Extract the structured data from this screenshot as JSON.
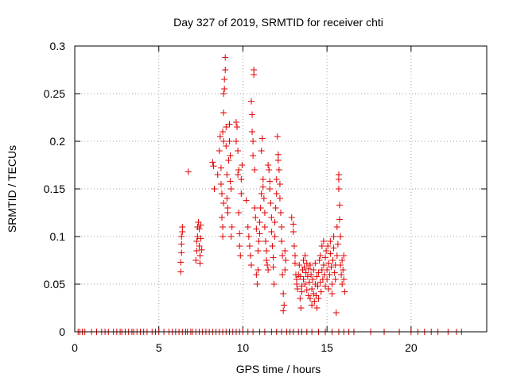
{
  "chart_data": {
    "type": "scatter",
    "title": "Day 327 of 2019, SRMTID for receiver chti",
    "xlabel": "GPS time / hours",
    "ylabel": "SRMTID / TECUs",
    "xlim": [
      0,
      24.5
    ],
    "ylim": [
      0,
      0.3
    ],
    "xticks": [
      0,
      5,
      10,
      15,
      20
    ],
    "yticks": [
      0,
      0.05,
      0.1,
      0.15,
      0.2,
      0.25,
      0.3
    ],
    "xtick_labels": [
      "0",
      "5",
      "10",
      "15",
      "20"
    ],
    "ytick_labels": [
      "0",
      "0.05",
      "0.1",
      "0.15",
      "0.2",
      "0.25",
      "0.3"
    ],
    "grid": true,
    "marker": "+",
    "color": "#e00000",
    "series": [
      {
        "name": "SRMTID",
        "points": [
          [
            0.2,
            0
          ],
          [
            0.3,
            0
          ],
          [
            0.45,
            0
          ],
          [
            0.6,
            0
          ],
          [
            1.0,
            0
          ],
          [
            1.3,
            0
          ],
          [
            1.6,
            0
          ],
          [
            1.8,
            0
          ],
          [
            2.0,
            0
          ],
          [
            2.3,
            0
          ],
          [
            2.5,
            0
          ],
          [
            2.7,
            0
          ],
          [
            2.8,
            0
          ],
          [
            3.0,
            0
          ],
          [
            3.2,
            0
          ],
          [
            3.4,
            0
          ],
          [
            3.5,
            0
          ],
          [
            3.7,
            0
          ],
          [
            3.9,
            0
          ],
          [
            4.1,
            0
          ],
          [
            4.3,
            0
          ],
          [
            4.6,
            0
          ],
          [
            4.8,
            0
          ],
          [
            5.0,
            0
          ],
          [
            5.3,
            0
          ],
          [
            5.6,
            0
          ],
          [
            5.8,
            0
          ],
          [
            6.0,
            0
          ],
          [
            6.2,
            0
          ],
          [
            6.4,
            0
          ],
          [
            6.6,
            0
          ],
          [
            6.7,
            0
          ],
          [
            6.9,
            0
          ],
          [
            7.0,
            0
          ],
          [
            7.2,
            0
          ],
          [
            7.4,
            0
          ],
          [
            7.6,
            0
          ],
          [
            7.8,
            0
          ],
          [
            8.0,
            0
          ],
          [
            8.2,
            0
          ],
          [
            8.4,
            0
          ],
          [
            8.6,
            0
          ],
          [
            8.8,
            0
          ],
          [
            9.0,
            0
          ],
          [
            9.2,
            0
          ],
          [
            9.4,
            0
          ],
          [
            9.6,
            0
          ],
          [
            9.8,
            0
          ],
          [
            10.0,
            0
          ],
          [
            10.3,
            0
          ],
          [
            10.6,
            0
          ],
          [
            11.0,
            0
          ],
          [
            11.3,
            0
          ],
          [
            11.7,
            0
          ],
          [
            12.0,
            0
          ],
          [
            12.3,
            0
          ],
          [
            12.6,
            0
          ],
          [
            12.8,
            0
          ],
          [
            13.0,
            0
          ],
          [
            13.3,
            0
          ],
          [
            13.5,
            0
          ],
          [
            13.8,
            0
          ],
          [
            14.1,
            0
          ],
          [
            14.5,
            0
          ],
          [
            14.9,
            0
          ],
          [
            15.3,
            0
          ],
          [
            15.7,
            0
          ],
          [
            16.0,
            0
          ],
          [
            16.3,
            0
          ],
          [
            16.6,
            0
          ],
          [
            17.6,
            0
          ],
          [
            18.4,
            0
          ],
          [
            19.3,
            0
          ],
          [
            20.0,
            0
          ],
          [
            20.4,
            0
          ],
          [
            20.8,
            0
          ],
          [
            21.2,
            0
          ],
          [
            21.6,
            0
          ],
          [
            22.2,
            0
          ],
          [
            22.7,
            0
          ],
          [
            23.0,
            0
          ],
          [
            6.3,
            0.063
          ],
          [
            6.3,
            0.073
          ],
          [
            6.35,
            0.083
          ],
          [
            6.35,
            0.092
          ],
          [
            6.35,
            0.1
          ],
          [
            6.4,
            0.105
          ],
          [
            6.4,
            0.11
          ],
          [
            6.75,
            0.168
          ],
          [
            7.2,
            0.075
          ],
          [
            7.25,
            0.085
          ],
          [
            7.25,
            0.095
          ],
          [
            7.3,
            0.1
          ],
          [
            7.3,
            0.11
          ],
          [
            7.35,
            0.115
          ],
          [
            7.4,
            0.108
          ],
          [
            7.4,
            0.09
          ],
          [
            7.45,
            0.08
          ],
          [
            7.45,
            0.072
          ],
          [
            7.5,
            0.098
          ],
          [
            7.5,
            0.112
          ],
          [
            7.55,
            0.086
          ],
          [
            8.2,
            0.178
          ],
          [
            8.25,
            0.174
          ],
          [
            8.3,
            0.15
          ],
          [
            8.5,
            0.165
          ],
          [
            8.6,
            0.19
          ],
          [
            8.65,
            0.205
          ],
          [
            8.7,
            0.172
          ],
          [
            8.7,
            0.155
          ],
          [
            8.75,
            0.145
          ],
          [
            8.75,
            0.12
          ],
          [
            8.8,
            0.11
          ],
          [
            8.8,
            0.1
          ],
          [
            8.85,
            0.135
          ],
          [
            8.85,
            0.2
          ],
          [
            8.8,
            0.21
          ],
          [
            8.85,
            0.23
          ],
          [
            8.85,
            0.25
          ],
          [
            8.9,
            0.255
          ],
          [
            8.9,
            0.265
          ],
          [
            8.95,
            0.275
          ],
          [
            8.95,
            0.288
          ],
          [
            9.0,
            0.195
          ],
          [
            9.0,
            0.215
          ],
          [
            9.05,
            0.165
          ],
          [
            9.05,
            0.14
          ],
          [
            9.1,
            0.125
          ],
          [
            9.1,
            0.13
          ],
          [
            9.15,
            0.18
          ],
          [
            9.2,
            0.2
          ],
          [
            9.2,
            0.218
          ],
          [
            9.25,
            0.185
          ],
          [
            9.25,
            0.158
          ],
          [
            9.3,
            0.15
          ],
          [
            9.3,
            0.1
          ],
          [
            9.35,
            0.11
          ],
          [
            9.6,
            0.22
          ],
          [
            9.6,
            0.2
          ],
          [
            9.65,
            0.215
          ],
          [
            9.7,
            0.19
          ],
          [
            9.7,
            0.165
          ],
          [
            9.75,
            0.17
          ],
          [
            9.75,
            0.125
          ],
          [
            9.8,
            0.103
          ],
          [
            9.8,
            0.09
          ],
          [
            9.85,
            0.08
          ],
          [
            9.9,
            0.145
          ],
          [
            9.9,
            0.16
          ],
          [
            9.95,
            0.175
          ],
          [
            10.2,
            0.138
          ],
          [
            10.3,
            0.11
          ],
          [
            10.35,
            0.1
          ],
          [
            10.4,
            0.09
          ],
          [
            10.45,
            0.08
          ],
          [
            10.5,
            0.07
          ],
          [
            10.5,
            0.242
          ],
          [
            10.55,
            0.228
          ],
          [
            10.55,
            0.21
          ],
          [
            10.6,
            0.2
          ],
          [
            10.6,
            0.185
          ],
          [
            10.65,
            0.275
          ],
          [
            10.65,
            0.27
          ],
          [
            10.7,
            0.17
          ],
          [
            10.7,
            0.13
          ],
          [
            10.75,
            0.12
          ],
          [
            10.8,
            0.108
          ],
          [
            10.8,
            0.06
          ],
          [
            10.85,
            0.05
          ],
          [
            10.9,
            0.065
          ],
          [
            10.9,
            0.085
          ],
          [
            10.95,
            0.095
          ],
          [
            11.0,
            0.103
          ],
          [
            11.0,
            0.115
          ],
          [
            11.05,
            0.13
          ],
          [
            11.1,
            0.145
          ],
          [
            11.1,
            0.19
          ],
          [
            11.15,
            0.203
          ],
          [
            11.2,
            0.152
          ],
          [
            11.2,
            0.16
          ],
          [
            11.25,
            0.14
          ],
          [
            11.3,
            0.125
          ],
          [
            11.3,
            0.11
          ],
          [
            11.35,
            0.095
          ],
          [
            11.4,
            0.085
          ],
          [
            11.4,
            0.075
          ],
          [
            11.45,
            0.07
          ],
          [
            11.5,
            0.065
          ],
          [
            11.5,
            0.175
          ],
          [
            11.55,
            0.17
          ],
          [
            11.6,
            0.158
          ],
          [
            11.6,
            0.15
          ],
          [
            11.65,
            0.135
          ],
          [
            11.7,
            0.12
          ],
          [
            11.7,
            0.105
          ],
          [
            11.75,
            0.09
          ],
          [
            11.8,
            0.078
          ],
          [
            11.8,
            0.068
          ],
          [
            11.85,
            0.05
          ],
          [
            11.9,
            0.1
          ],
          [
            11.9,
            0.115
          ],
          [
            11.95,
            0.13
          ],
          [
            12.0,
            0.145
          ],
          [
            12.0,
            0.16
          ],
          [
            12.05,
            0.205
          ],
          [
            12.1,
            0.186
          ],
          [
            12.1,
            0.18
          ],
          [
            12.15,
            0.17
          ],
          [
            12.2,
            0.155
          ],
          [
            12.2,
            0.14
          ],
          [
            12.25,
            0.125
          ],
          [
            12.3,
            0.11
          ],
          [
            12.3,
            0.095
          ],
          [
            12.35,
            0.08
          ],
          [
            12.35,
            0.06
          ],
          [
            12.4,
            0.04
          ],
          [
            12.4,
            0.022
          ],
          [
            12.45,
            0.028
          ],
          [
            12.5,
            0.065
          ],
          [
            12.5,
            0.085
          ],
          [
            12.55,
            0.075
          ],
          [
            12.9,
            0.12
          ],
          [
            13.0,
            0.113
          ],
          [
            13.0,
            0.105
          ],
          [
            13.05,
            0.09
          ],
          [
            13.1,
            0.08
          ],
          [
            13.1,
            0.072
          ],
          [
            13.15,
            0.06
          ],
          [
            13.2,
            0.055
          ],
          [
            13.2,
            0.05
          ],
          [
            13.25,
            0.045
          ],
          [
            13.3,
            0.06
          ],
          [
            13.35,
            0.07
          ],
          [
            13.4,
            0.058
          ],
          [
            13.4,
            0.035
          ],
          [
            13.45,
            0.025
          ],
          [
            13.5,
            0.042
          ],
          [
            13.5,
            0.048
          ],
          [
            13.55,
            0.065
          ],
          [
            13.6,
            0.075
          ],
          [
            13.6,
            0.055
          ],
          [
            13.65,
            0.068
          ],
          [
            13.7,
            0.05
          ],
          [
            13.7,
            0.08
          ],
          [
            13.75,
            0.062
          ],
          [
            13.8,
            0.072
          ],
          [
            13.8,
            0.044
          ],
          [
            13.85,
            0.058
          ],
          [
            13.9,
            0.038
          ],
          [
            13.9,
            0.066
          ],
          [
            13.95,
            0.052
          ],
          [
            14.0,
            0.07
          ],
          [
            14.0,
            0.035
          ],
          [
            14.05,
            0.06
          ],
          [
            14.1,
            0.045
          ],
          [
            14.1,
            0.028
          ],
          [
            14.15,
            0.055
          ],
          [
            14.2,
            0.04
          ],
          [
            14.2,
            0.065
          ],
          [
            14.25,
            0.032
          ],
          [
            14.3,
            0.05
          ],
          [
            14.3,
            0.072
          ],
          [
            14.35,
            0.038
          ],
          [
            14.4,
            0.058
          ],
          [
            14.4,
            0.025
          ],
          [
            14.45,
            0.048
          ],
          [
            14.5,
            0.062
          ],
          [
            14.5,
            0.035
          ],
          [
            14.55,
            0.075
          ],
          [
            14.6,
            0.052
          ],
          [
            14.6,
            0.08
          ],
          [
            14.65,
            0.042
          ],
          [
            14.7,
            0.065
          ],
          [
            14.7,
            0.09
          ],
          [
            14.75,
            0.055
          ],
          [
            14.8,
            0.07
          ],
          [
            14.8,
            0.095
          ],
          [
            14.85,
            0.06
          ],
          [
            14.9,
            0.048
          ],
          [
            14.9,
            0.078
          ],
          [
            14.95,
            0.085
          ],
          [
            15.0,
            0.065
          ],
          [
            15.0,
            0.055
          ],
          [
            15.05,
            0.09
          ],
          [
            15.1,
            0.072
          ],
          [
            15.1,
            0.045
          ],
          [
            15.15,
            0.06
          ],
          [
            15.2,
            0.082
          ],
          [
            15.2,
            0.095
          ],
          [
            15.25,
            0.068
          ],
          [
            15.3,
            0.05
          ],
          [
            15.3,
            0.04
          ],
          [
            15.35,
            0.075
          ],
          [
            15.4,
            0.088
          ],
          [
            15.4,
            0.1
          ],
          [
            15.45,
            0.062
          ],
          [
            15.5,
            0.07
          ],
          [
            15.5,
            0.055
          ],
          [
            15.55,
            0.02
          ],
          [
            15.6,
            0.08
          ],
          [
            15.6,
            0.11
          ],
          [
            15.65,
            0.092
          ],
          [
            15.7,
            0.16
          ],
          [
            15.7,
            0.165
          ],
          [
            15.7,
            0.15
          ],
          [
            15.75,
            0.133
          ],
          [
            15.75,
            0.118
          ],
          [
            15.8,
            0.1
          ],
          [
            15.8,
            0.07
          ],
          [
            15.85,
            0.06
          ],
          [
            15.9,
            0.075
          ],
          [
            15.9,
            0.05
          ],
          [
            15.95,
            0.065
          ],
          [
            16.0,
            0.08
          ],
          [
            16.0,
            0.055
          ],
          [
            16.05,
            0.042
          ]
        ]
      }
    ]
  }
}
